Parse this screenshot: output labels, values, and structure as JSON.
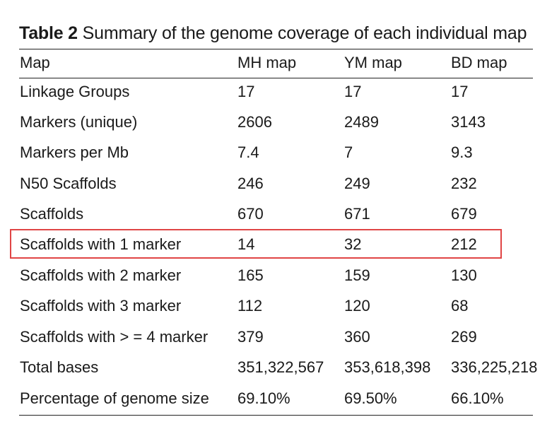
{
  "caption": {
    "label": "Table 2",
    "text": "Summary of the genome coverage of each individual map"
  },
  "table": {
    "headers": [
      "Map",
      "MH map",
      "YM map",
      "BD map"
    ],
    "rows": [
      [
        "Linkage Groups",
        "17",
        "17",
        "17"
      ],
      [
        "Markers (unique)",
        "2606",
        "2489",
        "3143"
      ],
      [
        "Markers per Mb",
        "7.4",
        "7",
        "9.3"
      ],
      [
        "N50 Scaffolds",
        "246",
        "249",
        "232"
      ],
      [
        "Scaffolds",
        "670",
        "671",
        "679"
      ],
      [
        "Scaffolds with 1 marker",
        "14",
        "32",
        "212"
      ],
      [
        "Scaffolds with 2 marker",
        "165",
        "159",
        "130"
      ],
      [
        "Scaffolds with 3 marker",
        "112",
        "120",
        "68"
      ],
      [
        "Scaffolds with > = 4 marker",
        "379",
        "360",
        "269"
      ],
      [
        "Total bases",
        "351,322,567",
        "353,618,398",
        "336,225,218"
      ],
      [
        "Percentage of genome size",
        "69.10%",
        "69.50%",
        "66.10%"
      ]
    ]
  },
  "highlight": {
    "row_label": "Scaffolds with 1 marker",
    "color": "#e04545"
  }
}
